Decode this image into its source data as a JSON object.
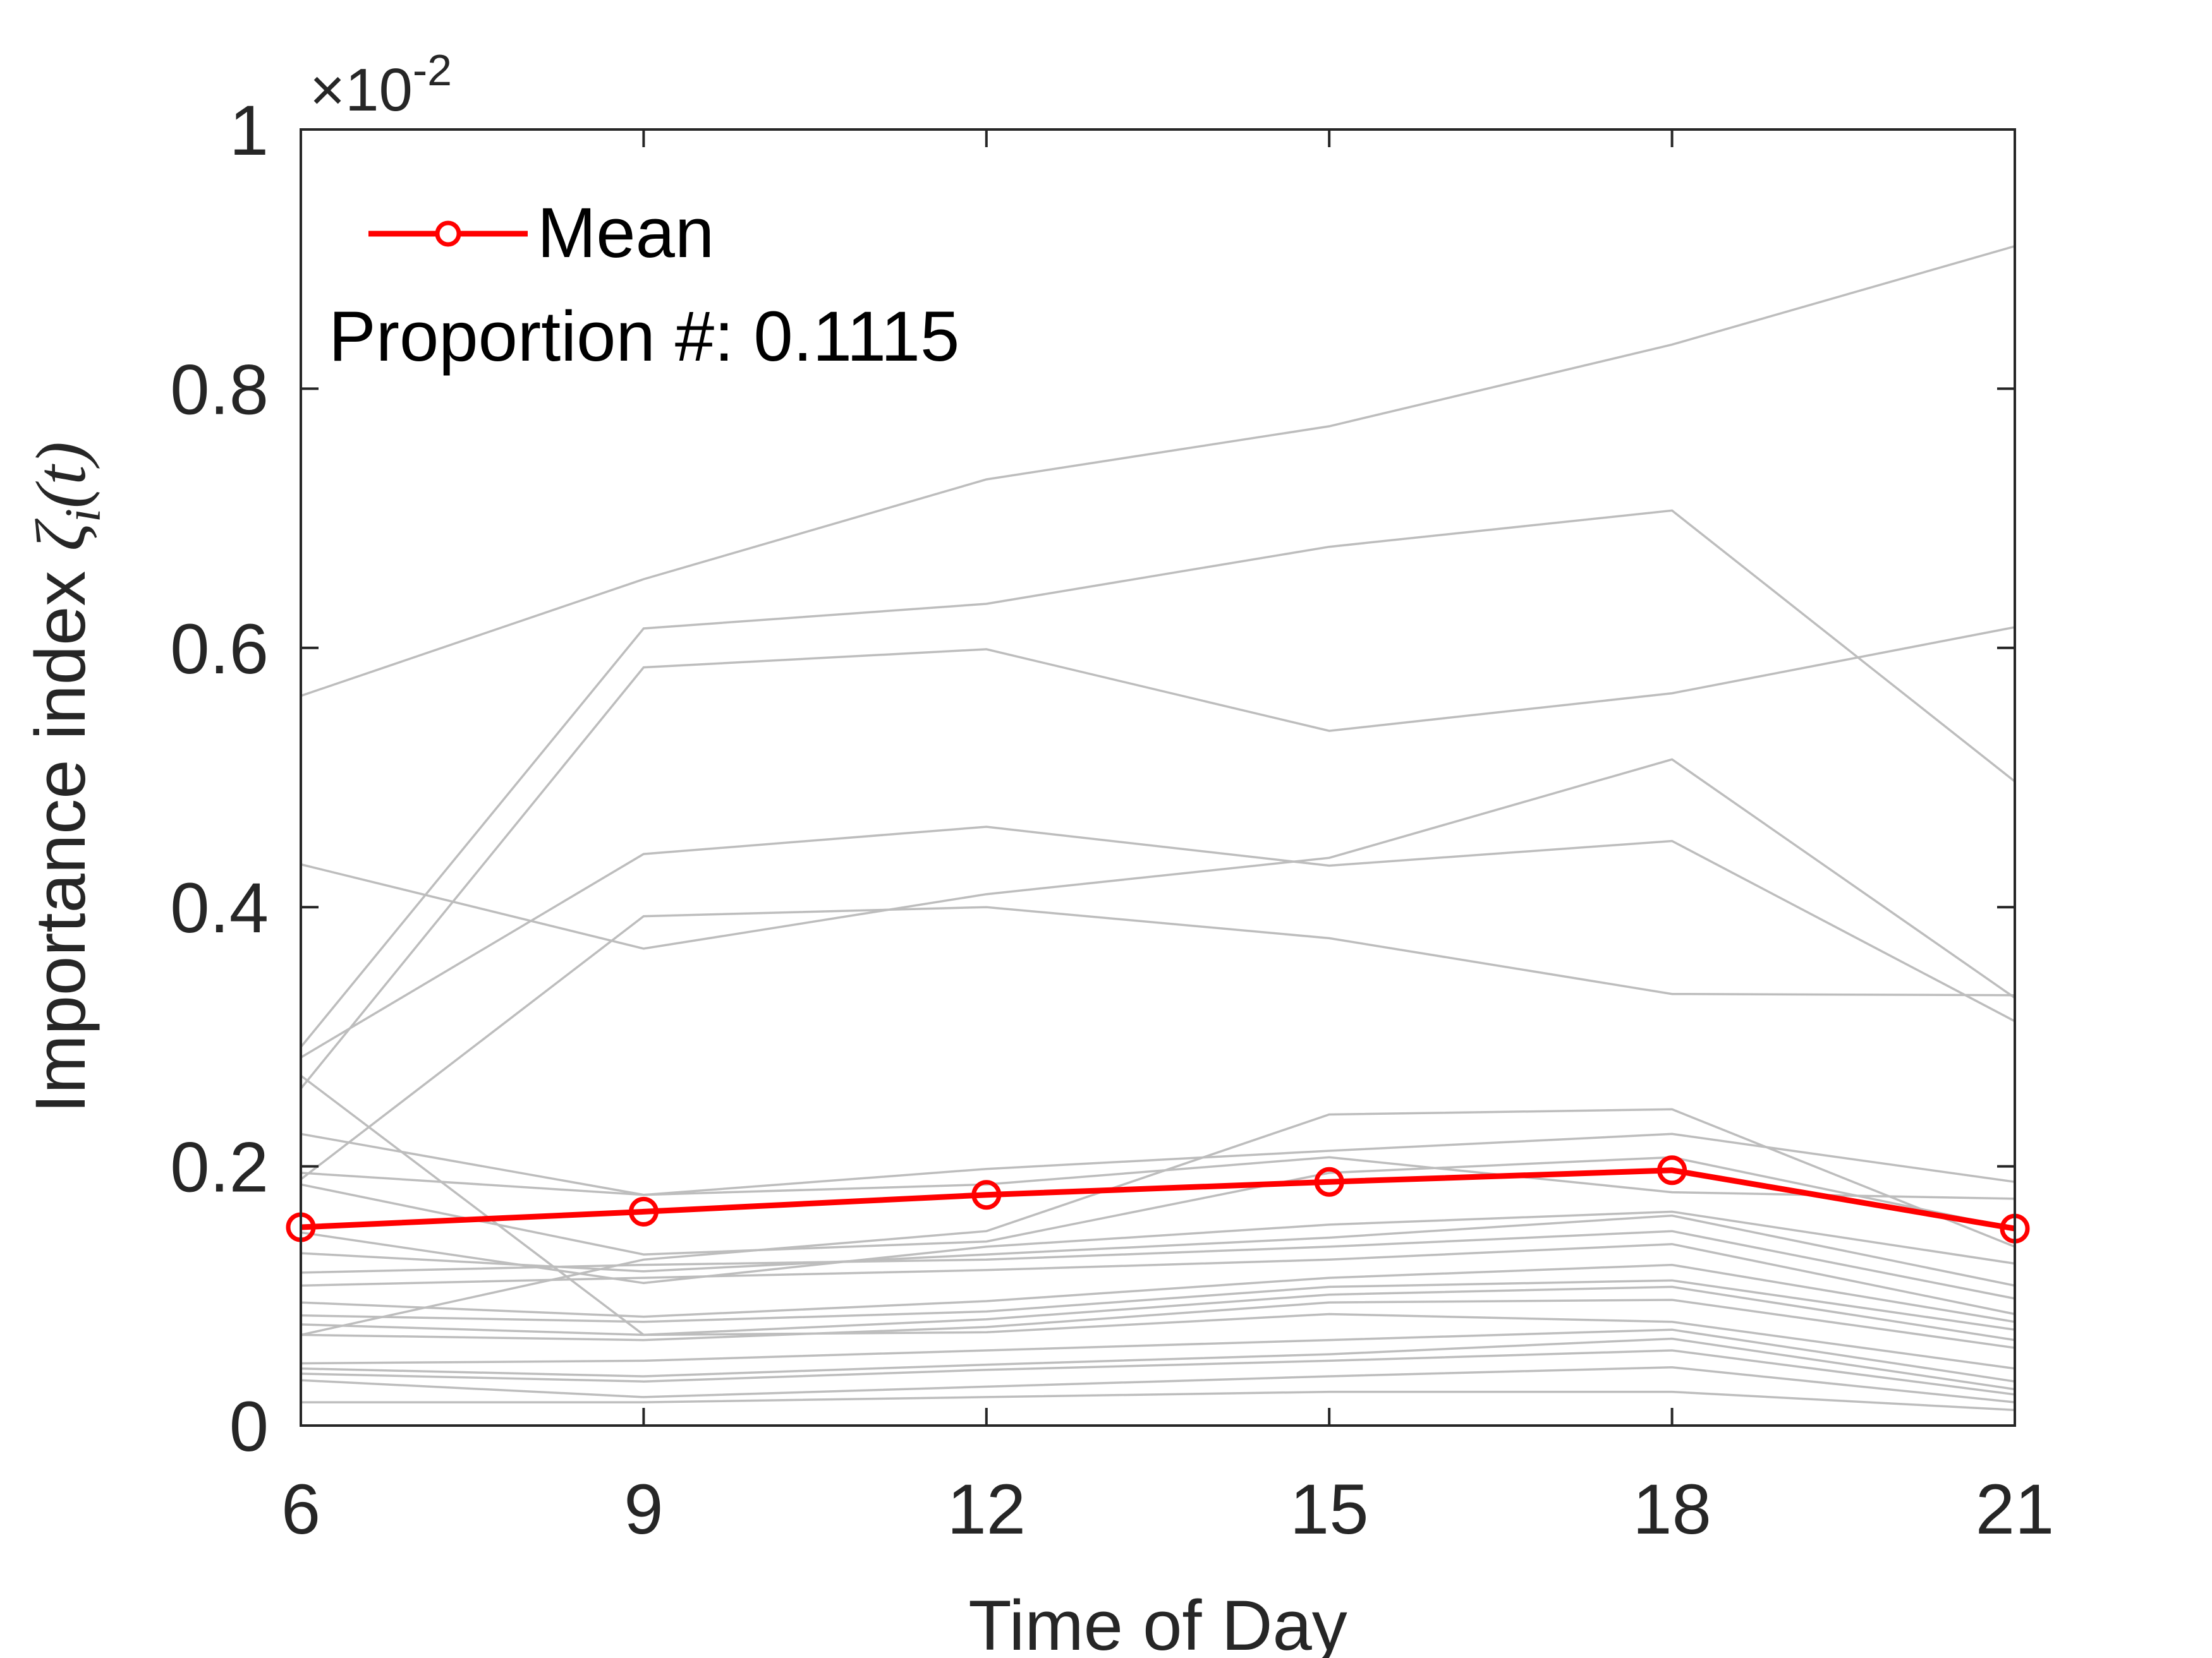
{
  "chart_data": {
    "type": "line",
    "x": [
      6,
      9,
      12,
      15,
      18,
      21
    ],
    "xlabel": "Time of Day",
    "ylabel_text": "Importance index",
    "ylabel_symbol": "ζ",
    "ylabel_subscript": "i",
    "ylabel_arg": "(t)",
    "ylabel": "Importance index ζi(t)",
    "xlim": [
      6,
      21
    ],
    "ylim": [
      0,
      1
    ],
    "xticks": [
      "6",
      "9",
      "12",
      "15",
      "18",
      "21"
    ],
    "yticks": [
      "0",
      "0.2",
      "0.4",
      "0.6",
      "0.8",
      "1"
    ],
    "ytick_values": [
      0,
      0.2,
      0.4,
      0.6,
      0.8,
      1
    ],
    "exponent_base": "×10",
    "exponent_power": "-2",
    "mean_series": {
      "name": "Mean",
      "color": "#ff0000",
      "marker": "circle",
      "values": [
        0.153,
        0.165,
        0.178,
        0.188,
        0.197,
        0.152
      ]
    },
    "annotation": "Proportion #: 0.1115",
    "legend_position": "top-left",
    "gray_color": "#bdbdbd",
    "gray_series": [
      [
        0.563,
        0.653,
        0.73,
        0.771,
        0.834,
        0.91
      ],
      [
        0.292,
        0.615,
        0.634,
        0.678,
        0.706,
        0.497
      ],
      [
        0.26,
        0.585,
        0.599,
        0.536,
        0.565,
        0.616
      ],
      [
        0.433,
        0.368,
        0.41,
        0.438,
        0.514,
        0.33
      ],
      [
        0.284,
        0.441,
        0.462,
        0.432,
        0.451,
        0.312
      ],
      [
        0.19,
        0.393,
        0.4,
        0.376,
        0.333,
        0.332
      ],
      [
        0.27,
        0.07,
        0.072,
        0.086,
        0.08,
        0.044
      ],
      [
        0.07,
        0.128,
        0.15,
        0.24,
        0.244,
        0.138
      ],
      [
        0.225,
        0.178,
        0.198,
        0.212,
        0.225,
        0.188
      ],
      [
        0.195,
        0.178,
        0.186,
        0.207,
        0.18,
        0.175
      ],
      [
        0.186,
        0.132,
        0.142,
        0.195,
        0.207,
        0.152
      ],
      [
        0.149,
        0.11,
        0.138,
        0.155,
        0.165,
        0.125
      ],
      [
        0.133,
        0.119,
        0.132,
        0.145,
        0.162,
        0.108
      ],
      [
        0.118,
        0.124,
        0.128,
        0.138,
        0.15,
        0.098
      ],
      [
        0.108,
        0.114,
        0.12,
        0.128,
        0.14,
        0.086
      ],
      [
        0.095,
        0.084,
        0.096,
        0.114,
        0.124,
        0.08
      ],
      [
        0.085,
        0.08,
        0.088,
        0.107,
        0.112,
        0.074
      ],
      [
        0.078,
        0.07,
        0.082,
        0.101,
        0.107,
        0.066
      ],
      [
        0.07,
        0.066,
        0.076,
        0.095,
        0.097,
        0.06
      ],
      [
        0.048,
        0.05,
        0.058,
        0.066,
        0.074,
        0.034
      ],
      [
        0.044,
        0.038,
        0.047,
        0.055,
        0.067,
        0.028
      ],
      [
        0.04,
        0.034,
        0.043,
        0.05,
        0.058,
        0.024
      ],
      [
        0.035,
        0.022,
        0.03,
        0.038,
        0.045,
        0.018
      ],
      [
        0.018,
        0.018,
        0.022,
        0.026,
        0.026,
        0.012
      ]
    ]
  }
}
